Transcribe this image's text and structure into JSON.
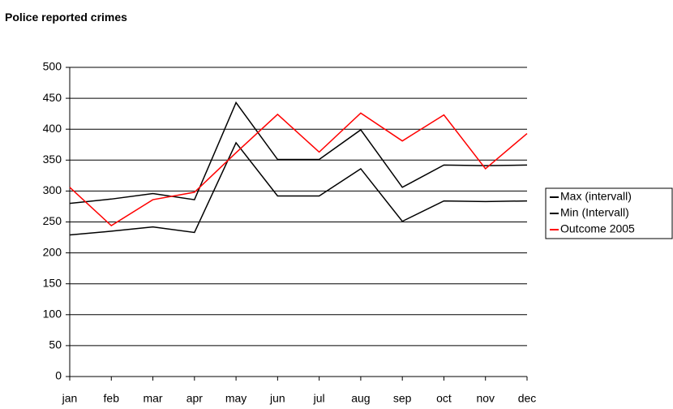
{
  "chart_data": {
    "type": "line",
    "title": "Police reported crimes",
    "categories": [
      "jan",
      "feb",
      "mar",
      "apr",
      "may",
      "jun",
      "jul",
      "aug",
      "sep",
      "oct",
      "nov",
      "dec"
    ],
    "series": [
      {
        "name": "Max (intervall)",
        "color": "#000000",
        "values": [
          280,
          287,
          296,
          286,
          443,
          351,
          351,
          399,
          306,
          342,
          341,
          342
        ]
      },
      {
        "name": "Min (Intervall)",
        "color": "#000000",
        "values": [
          229,
          235,
          242,
          233,
          378,
          292,
          292,
          336,
          251,
          284,
          283,
          284
        ]
      },
      {
        "name": "Outcome 2005",
        "color": "#ff0000",
        "values": [
          306,
          244,
          286,
          298,
          362,
          424,
          363,
          426,
          381,
          423,
          336,
          393
        ]
      }
    ],
    "ylim": [
      0,
      500
    ],
    "yticks": [
      0,
      50,
      100,
      150,
      200,
      250,
      300,
      350,
      400,
      450,
      500
    ],
    "grid": true,
    "legend": "right"
  }
}
